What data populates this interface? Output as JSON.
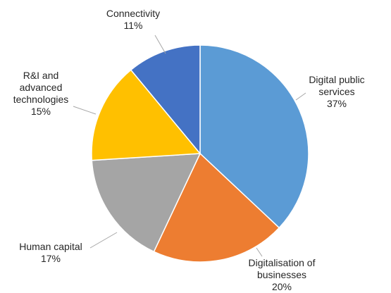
{
  "chart_data": {
    "type": "pie",
    "title": "",
    "slices": [
      {
        "label": [
          "Digital public",
          "services"
        ],
        "value": 37,
        "display": "37%",
        "color": "#5B9BD5"
      },
      {
        "label": [
          "Digitalisation of",
          "businesses"
        ],
        "value": 20,
        "display": "20%",
        "color": "#ED7D31"
      },
      {
        "label": [
          "Human capital"
        ],
        "value": 17,
        "display": "17%",
        "color": "#A5A5A5"
      },
      {
        "label": [
          "R&I and",
          "advanced",
          "technologies"
        ],
        "value": 15,
        "display": "15%",
        "color": "#FFC000"
      },
      {
        "label": [
          "Connectivity"
        ],
        "value": 11,
        "display": "11%",
        "color": "#4472C4"
      }
    ],
    "start_angle": "top",
    "direction": "clockwise",
    "legend": "none",
    "data_labels": "outside with leader lines"
  }
}
